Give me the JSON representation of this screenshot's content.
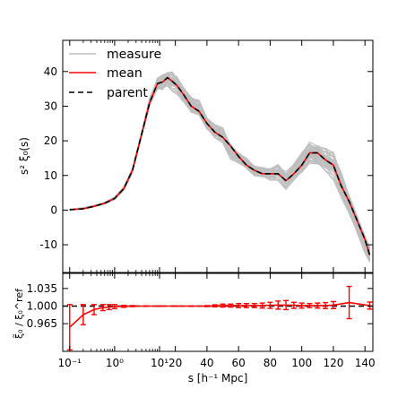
{
  "chart_data": [
    {
      "type": "line",
      "xscale": "piecewise: logarithmic from 0.1 to 10, linear from 10 to 145",
      "xlim": [
        0.07,
        145
      ],
      "ylim": [
        -18,
        49
      ],
      "ylabel": "s² ξ₀(s)",
      "xlabel": "",
      "grid": false,
      "legend": {
        "placement": "top-left",
        "entries": [
          {
            "label": "measure",
            "color": "#bfbfbf",
            "style": "solid"
          },
          {
            "label": "mean",
            "color": "#ff0000",
            "style": "solid"
          },
          {
            "label": "parent",
            "color": "#000000",
            "style": "dashed"
          }
        ]
      },
      "yticks": [
        -10,
        0,
        10,
        20,
        30,
        40
      ],
      "measure_realizations_spread": {
        "x": [
          0.1,
          0.2,
          0.35,
          0.6,
          1,
          1.6,
          2.5,
          4,
          6,
          9,
          12,
          15,
          18,
          21,
          25,
          30,
          35,
          40,
          45,
          50,
          55,
          60,
          65,
          70,
          75,
          80,
          85,
          90,
          95,
          100,
          105,
          110,
          115,
          120,
          125,
          130,
          135,
          140,
          143
        ],
        "lower": [
          0,
          0.2,
          0.8,
          1.5,
          2.8,
          5.5,
          10.5,
          20.5,
          29,
          34,
          33,
          34.5,
          33,
          32,
          29,
          26,
          26,
          22,
          19.5,
          18.5,
          13.5,
          12,
          10.5,
          9,
          8.5,
          7.5,
          7.5,
          4.5,
          6,
          8,
          11.5,
          11,
          9,
          7,
          1.5,
          -4,
          -9,
          -14,
          -17
        ],
        "upper": [
          0.3,
          0.8,
          1.5,
          2.5,
          4,
          7,
          12.5,
          23,
          33,
          39,
          41,
          41,
          41.5,
          40,
          37,
          34,
          33,
          28,
          26,
          25,
          20,
          17.5,
          16,
          13.5,
          13.5,
          13,
          14.5,
          12.5,
          15,
          18.5,
          21.5,
          21,
          20,
          19,
          13,
          6,
          0,
          -6,
          -8.5
        ],
        "count_drawn": 40
      },
      "series": [
        {
          "name": "mean",
          "color": "#ff0000",
          "style": "solid",
          "x": [
            0.1,
            0.2,
            0.35,
            0.6,
            1,
            1.6,
            2.5,
            4,
            6,
            9,
            12,
            15,
            18,
            21,
            25,
            30,
            35,
            40,
            45,
            50,
            55,
            60,
            65,
            70,
            75,
            80,
            85,
            90,
            95,
            100,
            105,
            110,
            115,
            120,
            125,
            130,
            135,
            140,
            143
          ],
          "y": [
            0.1,
            0.4,
            1.1,
            2,
            3.4,
            6.2,
            11.5,
            22,
            31,
            36.5,
            37,
            38.2,
            37.2,
            36,
            33.5,
            30,
            28.5,
            25,
            22.5,
            21,
            18.5,
            15.5,
            13,
            11.5,
            10.5,
            10.5,
            10.5,
            8.5,
            10.5,
            13,
            16.5,
            16.5,
            14.5,
            13,
            7,
            2.5,
            -3,
            -8.5,
            -13
          ]
        },
        {
          "name": "parent",
          "color": "#000000",
          "style": "dashed",
          "x": [
            0.1,
            0.2,
            0.35,
            0.6,
            1,
            1.6,
            2.5,
            4,
            6,
            9,
            12,
            15,
            18,
            21,
            25,
            30,
            35,
            40,
            45,
            50,
            55,
            60,
            65,
            70,
            75,
            80,
            85,
            90,
            95,
            100,
            105,
            110,
            115,
            120,
            125,
            130,
            135,
            140,
            143
          ],
          "y": [
            0.1,
            0.4,
            1.1,
            2,
            3.4,
            6.2,
            11.5,
            22,
            31,
            36.5,
            37,
            38.2,
            37.2,
            36,
            33.5,
            30,
            28.5,
            25,
            22.5,
            21,
            18.5,
            15.5,
            13,
            11.5,
            10.5,
            10.5,
            10.5,
            8.5,
            10.5,
            13,
            16.5,
            16.5,
            14.5,
            13,
            7,
            2.5,
            -3,
            -8.5,
            -13
          ]
        }
      ]
    },
    {
      "type": "line",
      "xscale": "piecewise: logarithmic from 0.1 to 10, linear from 10 to 145",
      "xlim": [
        0.07,
        145
      ],
      "ylim": [
        0.91,
        1.065
      ],
      "ylabel": "ξ̃₀ / ξ₀^ref",
      "xlabel": "s [h⁻¹ Mpc]",
      "xtick_labels": [
        "10⁻¹",
        "10⁰",
        "10¹",
        "20",
        "40",
        "60",
        "80",
        "100",
        "120",
        "140"
      ],
      "xticks": [
        0.1,
        1,
        10,
        20,
        40,
        60,
        80,
        100,
        120,
        140
      ],
      "ytick_labels": [
        "0.965",
        "1.000",
        "1.035"
      ],
      "yticks": [
        0.965,
        1.0,
        1.035
      ],
      "reference_line": {
        "y": 1.0,
        "color": "#000000",
        "style": "dashed"
      },
      "series": [
        {
          "name": "ratio",
          "color": "#ff0000",
          "style": "solid",
          "x": [
            0.1,
            0.2,
            0.35,
            0.55,
            0.75,
            1,
            1.6,
            2.5,
            5,
            10,
            20,
            30,
            40,
            45,
            50,
            55,
            60,
            65,
            70,
            75,
            80,
            85,
            90,
            95,
            100,
            105,
            110,
            115,
            120,
            130,
            143
          ],
          "y": [
            0.958,
            0.983,
            0.993,
            0.997,
            0.998,
            0.999,
            0.9995,
            1.0,
            1.0,
            1.0,
            1.0,
            1.0,
            1.0,
            1.0005,
            1.001,
            1.001,
            1.001,
            1.001,
            1.001,
            1.001,
            1.0015,
            1.002,
            1.002,
            1.0015,
            1.001,
            1.001,
            1.001,
            1.001,
            1.002,
            1.007,
            1.001
          ],
          "err": [
            0.045,
            0.02,
            0.01,
            0.006,
            0.005,
            0.004,
            0.002,
            0.001,
            0.0005,
            0.0005,
            0.0005,
            0.0005,
            0.001,
            0.002,
            0.003,
            0.003,
            0.004,
            0.004,
            0.004,
            0.005,
            0.006,
            0.008,
            0.009,
            0.006,
            0.005,
            0.004,
            0.005,
            0.006,
            0.007,
            0.032,
            0.007
          ]
        }
      ]
    }
  ]
}
